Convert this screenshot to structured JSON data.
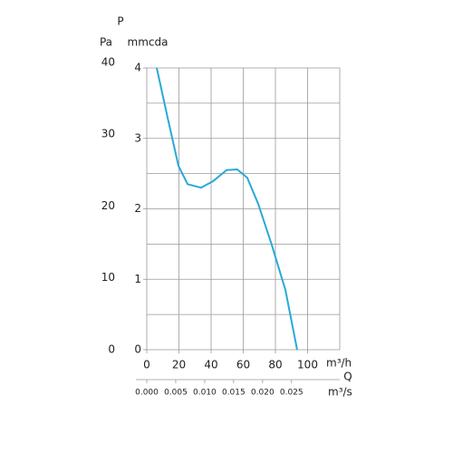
{
  "chart_data": {
    "type": "line",
    "y_symbol": "P",
    "y2_unit": "Pa",
    "y_unit": "mmcda",
    "x_unit": "m³/h",
    "x_symbol": "Q",
    "x2_unit": "m³/s",
    "x": [
      6.2,
      13,
      19.7,
      25.4,
      33.8,
      41.1,
      49.6,
      56.3,
      62.5,
      69.3,
      77.7,
      86.2,
      93.5
    ],
    "series": [
      {
        "color": "#29a9d6",
        "values": [
          4.0,
          3.29,
          2.61,
          2.35,
          2.3,
          2.39,
          2.55,
          2.56,
          2.44,
          2.07,
          1.49,
          0.85,
          0
        ]
      }
    ],
    "xlim": [
      0,
      120
    ],
    "xticks": [
      0,
      20,
      40,
      60,
      80,
      100
    ],
    "ylim": [
      0,
      4
    ],
    "yticks": [
      0,
      1,
      2,
      3,
      4
    ],
    "yminor": [
      0.5,
      1.5,
      2.5,
      3.5
    ],
    "y2lim": [
      0,
      39.23
    ],
    "y2ticks": [
      0,
      10,
      20,
      30,
      40
    ],
    "x2lim": [
      0,
      0.03333
    ],
    "x2ticks": [
      {
        "value": 0,
        "label": "0.000"
      },
      {
        "value": 0.005,
        "label": "0.005"
      },
      {
        "value": 0.01,
        "label": "0.010"
      },
      {
        "value": 0.015,
        "label": "0.015"
      },
      {
        "value": 0.02,
        "label": "0.020"
      },
      {
        "value": 0.025,
        "label": "0.025"
      }
    ],
    "grid": true
  }
}
